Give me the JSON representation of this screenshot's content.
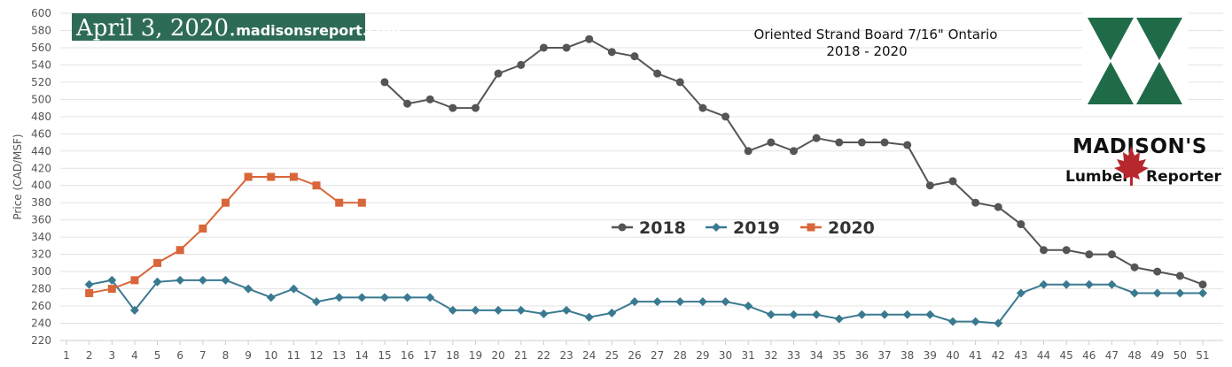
{
  "banner": {
    "date": "April 3, 2020.",
    "site": "madisonsreport.com",
    "bg": "#2e6b57"
  },
  "logo": {
    "name": "MADISON'S",
    "left_word": "Lumber",
    "right_word": "Reporter",
    "green": "#1f6b48",
    "leaf": "#b7282e"
  },
  "chart_data": {
    "type": "line",
    "title": "Oriented Strand Board 7/16\" Ontario",
    "subtitle": "2018 - 2020",
    "ylabel": "Price (CAD/MSF)",
    "xlabel": "",
    "ylim": [
      220,
      600
    ],
    "y_ticks": [
      220,
      240,
      260,
      280,
      300,
      320,
      340,
      360,
      380,
      400,
      420,
      440,
      460,
      480,
      500,
      520,
      540,
      560,
      580,
      600
    ],
    "x_ticks": [
      1,
      2,
      3,
      4,
      5,
      6,
      7,
      8,
      9,
      10,
      11,
      12,
      13,
      14,
      15,
      16,
      17,
      18,
      19,
      20,
      21,
      22,
      23,
      24,
      25,
      26,
      27,
      28,
      29,
      30,
      31,
      32,
      33,
      34,
      35,
      36,
      37,
      38,
      39,
      40,
      41,
      42,
      43,
      44,
      45,
      46,
      47,
      48,
      49,
      50,
      51
    ],
    "grid": "horizontal",
    "legend": "center",
    "series": [
      {
        "name": "2018",
        "color": "#555555",
        "marker": "circle",
        "x": [
          15,
          16,
          17,
          18,
          19,
          20,
          21,
          22,
          23,
          24,
          25,
          26,
          27,
          28,
          29,
          30,
          31,
          32,
          33,
          34,
          35,
          36,
          37,
          38,
          39,
          40,
          41,
          42,
          43,
          44,
          45,
          46,
          47,
          48,
          49,
          50,
          51
        ],
        "values": [
          520,
          495,
          500,
          490,
          490,
          530,
          540,
          560,
          560,
          570,
          555,
          550,
          530,
          520,
          490,
          480,
          440,
          450,
          440,
          455,
          450,
          450,
          450,
          447,
          400,
          405,
          380,
          375,
          355,
          325,
          325,
          320,
          320,
          305,
          300,
          295,
          285
        ]
      },
      {
        "name": "2019",
        "color": "#3a7a91",
        "marker": "diamond",
        "x": [
          2,
          3,
          4,
          5,
          6,
          7,
          8,
          9,
          10,
          11,
          12,
          13,
          14,
          15,
          16,
          17,
          18,
          19,
          20,
          21,
          22,
          23,
          24,
          25,
          26,
          27,
          28,
          29,
          30,
          31,
          32,
          33,
          34,
          35,
          36,
          37,
          38,
          39,
          40,
          41,
          42,
          43,
          44,
          45,
          46,
          47,
          48,
          49,
          50,
          51
        ],
        "values": [
          285,
          290,
          255,
          288,
          290,
          290,
          290,
          280,
          270,
          280,
          265,
          270,
          270,
          270,
          270,
          270,
          255,
          255,
          255,
          255,
          251,
          255,
          247,
          252,
          265,
          265,
          265,
          265,
          265,
          260,
          250,
          250,
          250,
          245,
          250,
          250,
          250,
          250,
          242,
          242,
          240,
          275,
          285,
          285,
          285,
          285,
          275,
          275,
          275,
          275
        ]
      },
      {
        "name": "2020",
        "color": "#d9663a",
        "marker": "square",
        "x": [
          2,
          3,
          4,
          5,
          6,
          7,
          8,
          9,
          10,
          11,
          12,
          13,
          14
        ],
        "values": [
          275,
          280,
          290,
          310,
          325,
          350,
          380,
          410,
          410,
          410,
          400,
          380,
          380
        ]
      }
    ]
  }
}
